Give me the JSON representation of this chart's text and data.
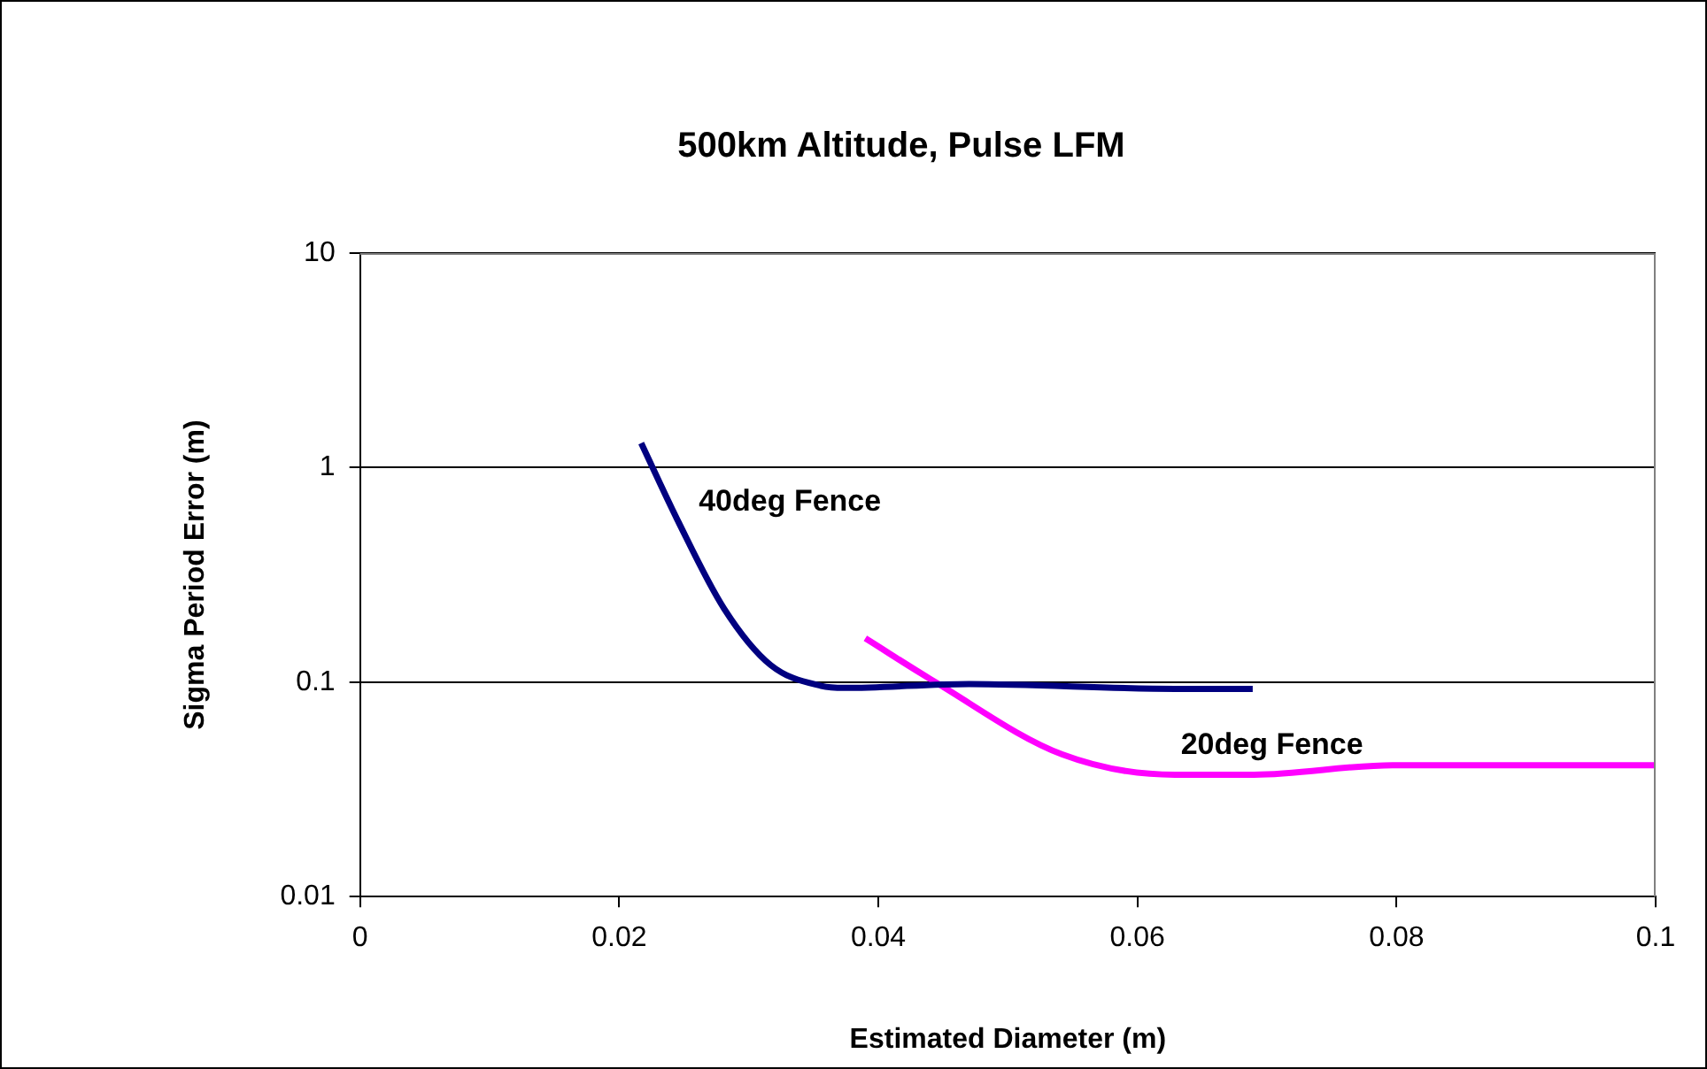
{
  "chart_data": {
    "type": "line",
    "title": "500km Altitude, Pulse LFM",
    "xlabel": "Estimated Diameter (m)",
    "ylabel": "Sigma Period Error (m)",
    "xlim": [
      0,
      0.1
    ],
    "xticks": [
      0,
      0.02,
      0.04,
      0.06,
      0.08,
      0.1
    ],
    "ylim": [
      0.01,
      10
    ],
    "yticks": [
      0.01,
      0.1,
      1,
      10
    ],
    "log": "y",
    "grid": "y",
    "legend": false,
    "marker": "none",
    "line_style": "solid",
    "series": [
      {
        "name": "40deg Fence",
        "color": "#000080",
        "x": [
          0.0217,
          0.0245,
          0.0281,
          0.0317,
          0.0356,
          0.0374,
          0.047,
          0.0629,
          0.0689
        ],
        "values": [
          1.3,
          0.57,
          0.22,
          0.12,
          0.096,
          0.094,
          0.098,
          0.093,
          0.093
        ]
      },
      {
        "name": "20deg Fence",
        "color": "#ff00ff",
        "x": [
          0.039,
          0.0444,
          0.0542,
          0.0629,
          0.069,
          0.0797,
          0.1
        ],
        "values": [
          0.16,
          0.1,
          0.046,
          0.037,
          0.037,
          0.041,
          0.041
        ]
      }
    ]
  }
}
